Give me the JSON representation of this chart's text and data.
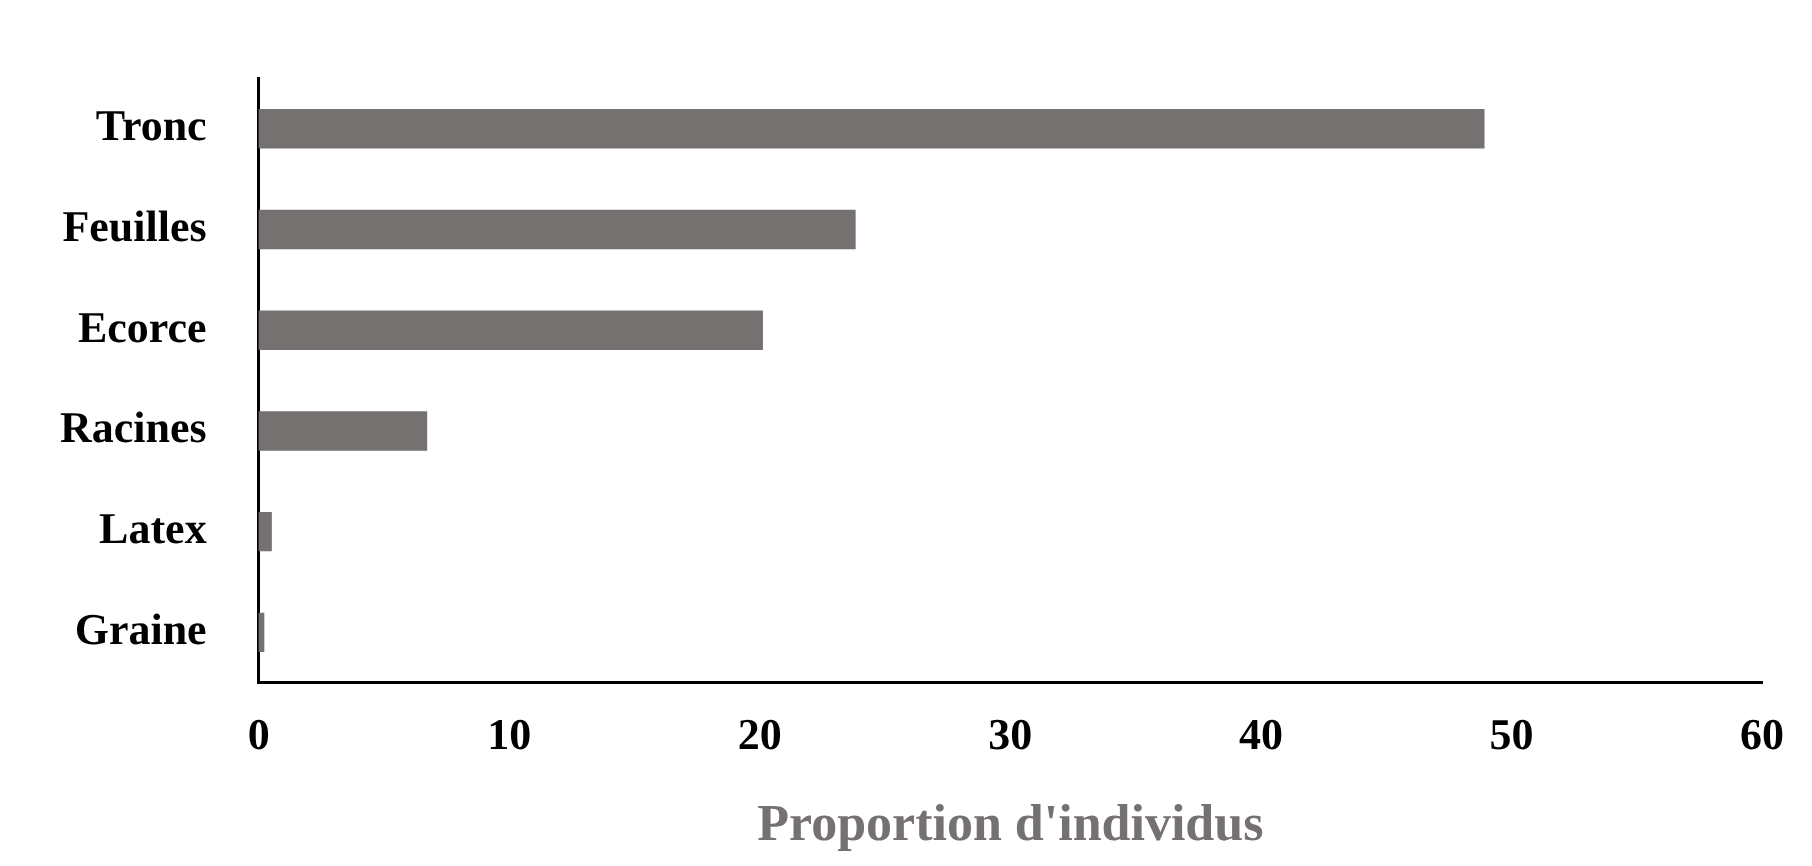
{
  "chart_data": {
    "type": "bar",
    "orientation": "horizontal",
    "xlabel": "Proportion d'individus",
    "categories": [
      "Tronc",
      "Feuilles",
      "Ecorce",
      "Racines",
      "Latex",
      "Graine"
    ],
    "values": [
      48.9,
      23.8,
      20.1,
      6.7,
      0.5,
      0.2
    ],
    "color": "#767171",
    "xlim": [
      0,
      60
    ],
    "xticks": [
      0,
      10,
      20,
      30,
      40,
      50,
      60
    ],
    "grid": false,
    "legend": false
  }
}
